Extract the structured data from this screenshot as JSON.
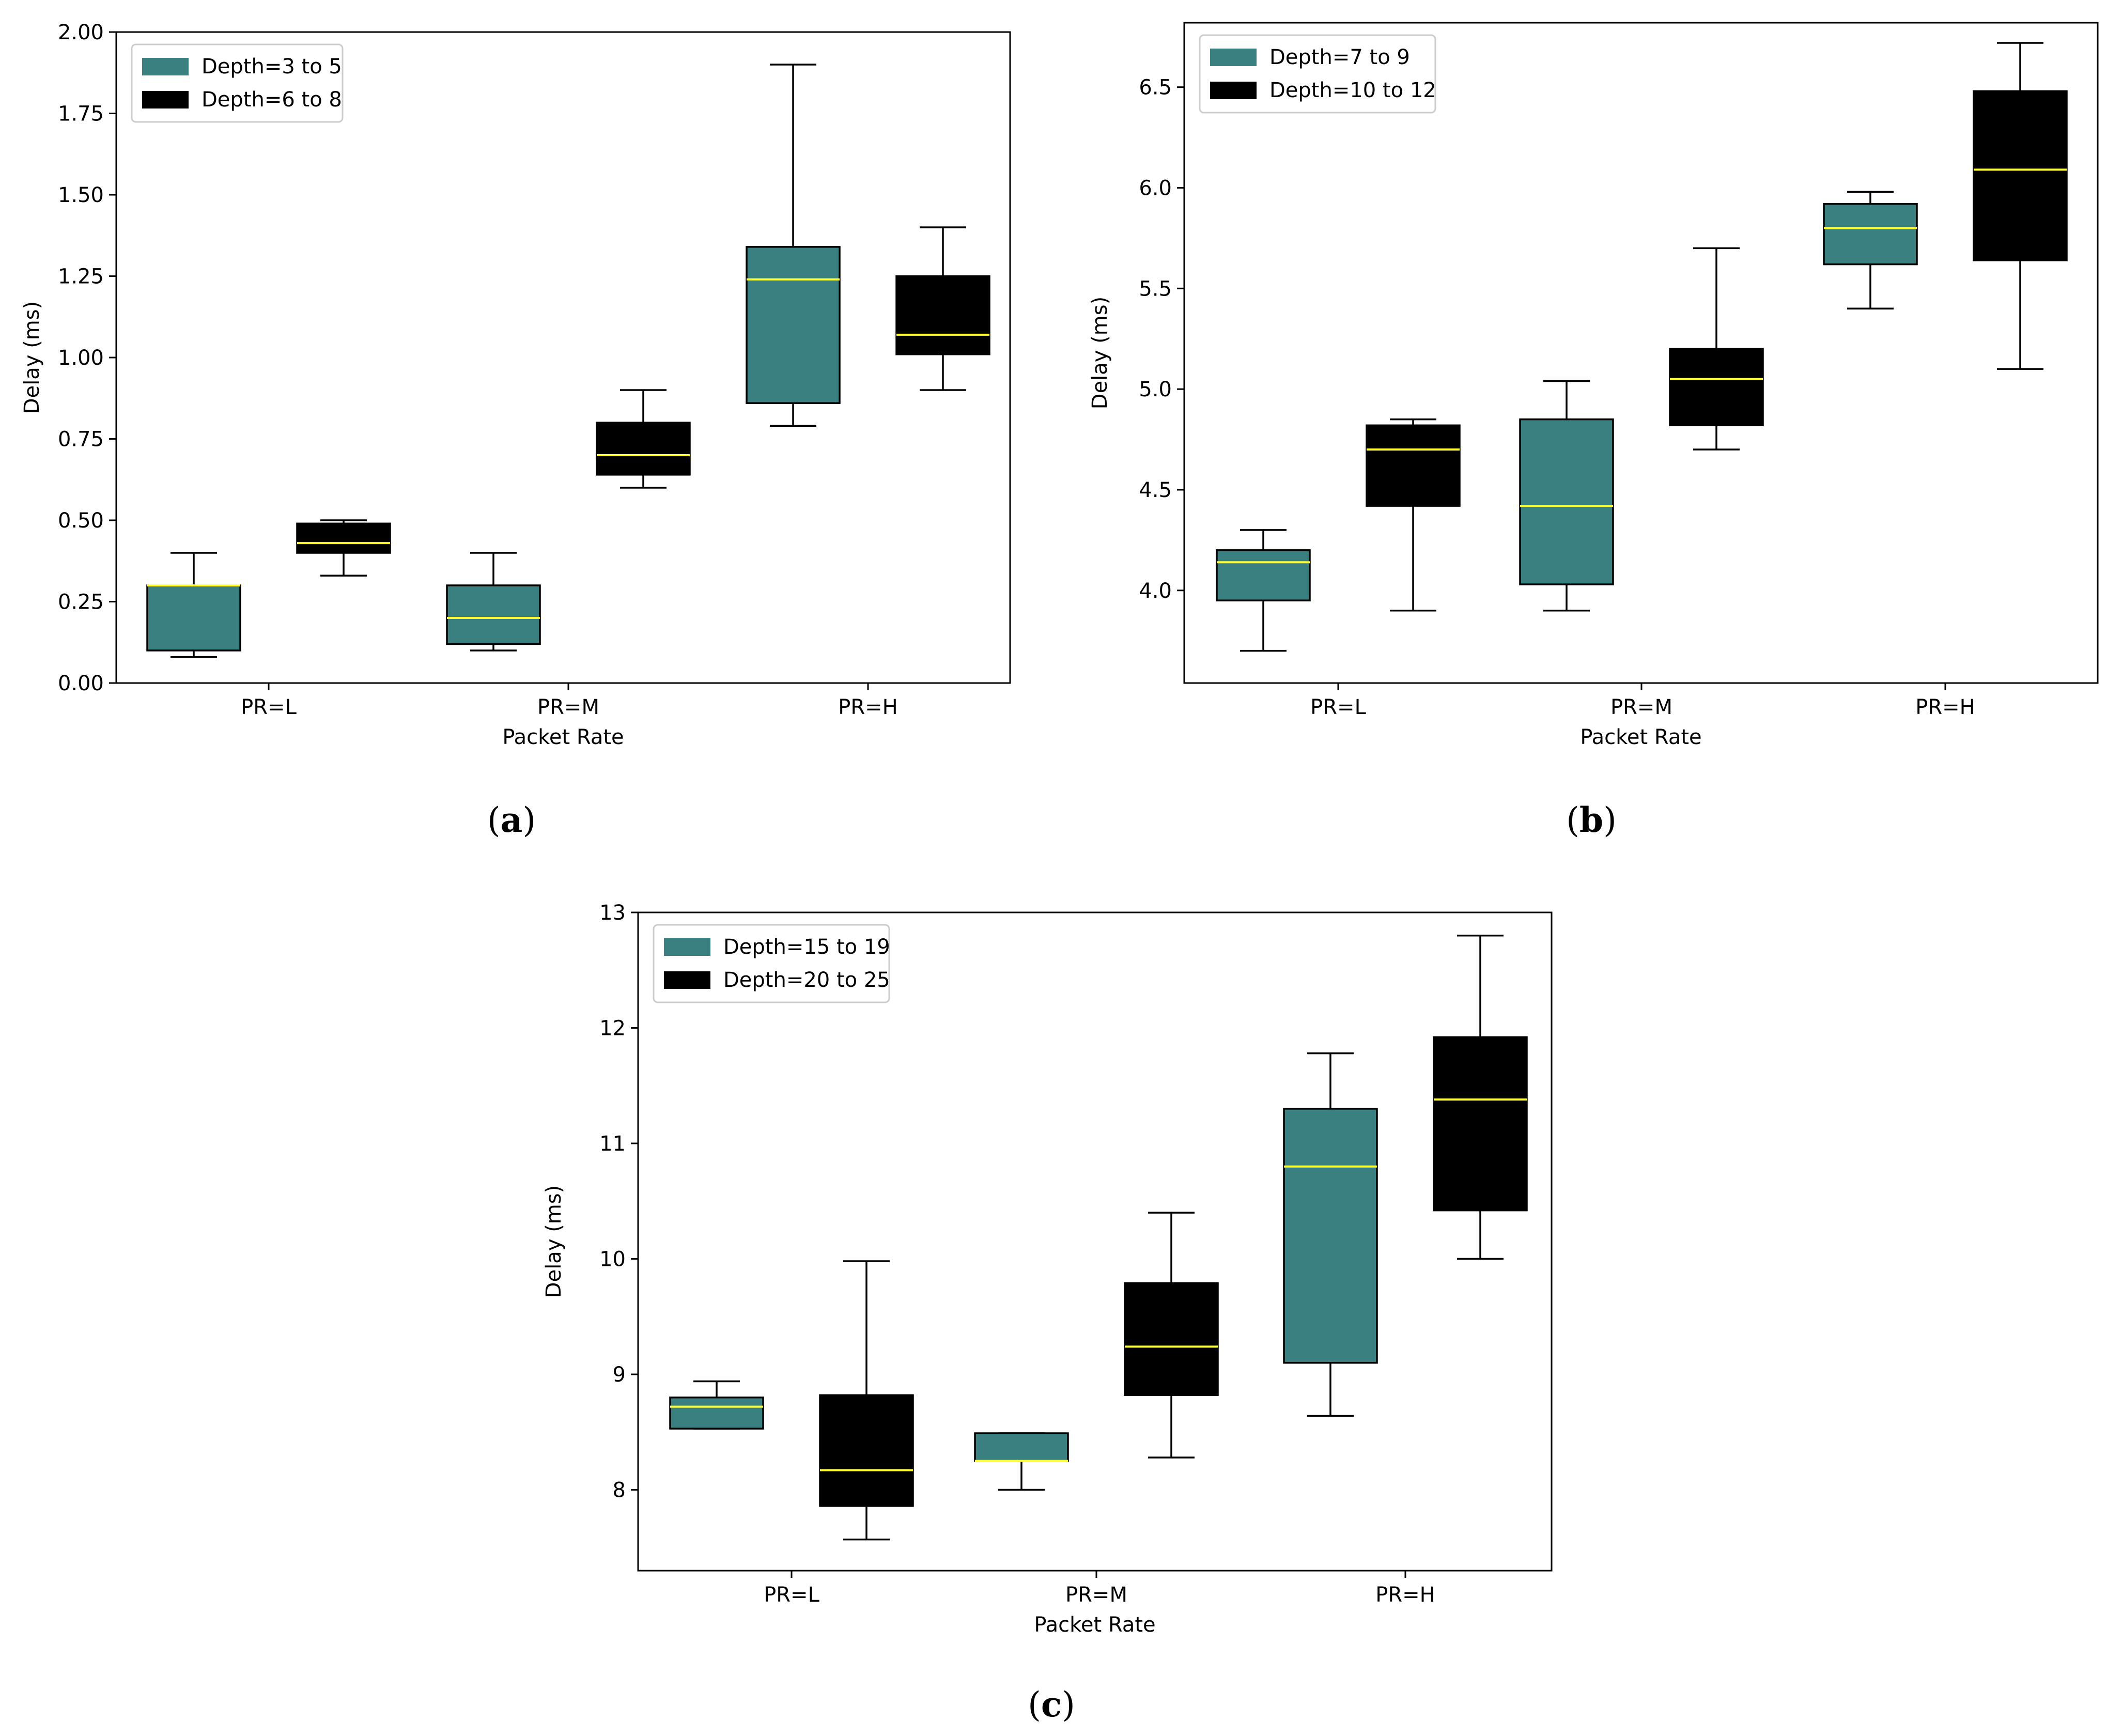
{
  "colors": {
    "teal": "#3a8080",
    "black": "#000000",
    "median": "#ffff33",
    "axis": "#000000"
  },
  "chart_data": [
    {
      "type": "box",
      "caption_letter": "a",
      "xlabel": "Packet Rate",
      "ylabel": "Delay (ms)",
      "categories": [
        "PR=L",
        "PR=M",
        "PR=H"
      ],
      "ylim": [
        0,
        2.0
      ],
      "yticks": [
        "0.00",
        "0.25",
        "0.50",
        "0.75",
        "1.00",
        "1.25",
        "1.50",
        "1.75",
        "2.00"
      ],
      "ytick_values": [
        0,
        0.25,
        0.5,
        0.75,
        1.0,
        1.25,
        1.5,
        1.75,
        2.0
      ],
      "legend_position": "top-left",
      "series": [
        {
          "name": "Depth=3 to 5",
          "color": "#3a8080",
          "boxes": [
            {
              "whislo": 0.08,
              "q1": 0.1,
              "med": 0.3,
              "q3": 0.3,
              "whishi": 0.4
            },
            {
              "whislo": 0.1,
              "q1": 0.12,
              "med": 0.2,
              "q3": 0.3,
              "whishi": 0.4
            },
            {
              "whislo": 0.79,
              "q1": 0.86,
              "med": 1.24,
              "q3": 1.34,
              "whishi": 1.9
            }
          ]
        },
        {
          "name": "Depth=6 to 8",
          "color": "#000000",
          "boxes": [
            {
              "whislo": 0.33,
              "q1": 0.4,
              "med": 0.43,
              "q3": 0.49,
              "whishi": 0.5
            },
            {
              "whislo": 0.6,
              "q1": 0.64,
              "med": 0.7,
              "q3": 0.8,
              "whishi": 0.9
            },
            {
              "whislo": 0.9,
              "q1": 1.01,
              "med": 1.07,
              "q3": 1.25,
              "whishi": 1.4
            }
          ]
        }
      ]
    },
    {
      "type": "box",
      "caption_letter": "b",
      "xlabel": "Packet Rate",
      "ylabel": "Delay (ms)",
      "categories": [
        "PR=L",
        "PR=M",
        "PR=H"
      ],
      "ylim": [
        3.54,
        6.82
      ],
      "yticks": [
        "4.0",
        "4.5",
        "5.0",
        "5.5",
        "6.0",
        "6.5"
      ],
      "ytick_values": [
        4.0,
        4.5,
        5.0,
        5.5,
        6.0,
        6.5
      ],
      "legend_position": "top-left",
      "series": [
        {
          "name": "Depth=7 to 9",
          "color": "#3a8080",
          "boxes": [
            {
              "whislo": 3.7,
              "q1": 3.95,
              "med": 4.14,
              "q3": 4.2,
              "whishi": 4.3
            },
            {
              "whislo": 3.9,
              "q1": 4.03,
              "med": 4.42,
              "q3": 4.85,
              "whishi": 5.04
            },
            {
              "whislo": 5.4,
              "q1": 5.62,
              "med": 5.8,
              "q3": 5.92,
              "whishi": 5.98
            }
          ]
        },
        {
          "name": "Depth=10 to 12",
          "color": "#000000",
          "boxes": [
            {
              "whislo": 3.9,
              "q1": 4.42,
              "med": 4.7,
              "q3": 4.82,
              "whishi": 4.85
            },
            {
              "whislo": 4.7,
              "q1": 4.82,
              "med": 5.05,
              "q3": 5.2,
              "whishi": 5.7
            },
            {
              "whislo": 5.1,
              "q1": 5.64,
              "med": 6.09,
              "q3": 6.48,
              "whishi": 6.72
            }
          ]
        }
      ]
    },
    {
      "type": "box",
      "caption_letter": "c",
      "xlabel": "Packet Rate",
      "ylabel": "Delay (ms)",
      "categories": [
        "PR=L",
        "PR=M",
        "PR=H"
      ],
      "ylim": [
        7.3,
        13.0
      ],
      "yticks": [
        "8",
        "9",
        "10",
        "11",
        "12",
        "13"
      ],
      "ytick_values": [
        8,
        9,
        10,
        11,
        12,
        13
      ],
      "legend_position": "top-left",
      "series": [
        {
          "name": "Depth=15 to 19",
          "color": "#3a8080",
          "boxes": [
            {
              "whislo": 8.53,
              "q1": 8.53,
              "med": 8.72,
              "q3": 8.8,
              "whishi": 8.94
            },
            {
              "whislo": 8.0,
              "q1": 8.25,
              "med": 8.25,
              "q3": 8.49,
              "whishi": 8.49
            },
            {
              "whislo": 8.64,
              "q1": 9.1,
              "med": 10.8,
              "q3": 11.3,
              "whishi": 11.78
            }
          ]
        },
        {
          "name": "Depth=20 to 25",
          "color": "#000000",
          "boxes": [
            {
              "whislo": 7.57,
              "q1": 7.86,
              "med": 8.17,
              "q3": 8.82,
              "whishi": 9.98
            },
            {
              "whislo": 8.28,
              "q1": 8.82,
              "med": 9.24,
              "q3": 9.79,
              "whishi": 10.4
            },
            {
              "whislo": 10.0,
              "q1": 10.42,
              "med": 11.38,
              "q3": 11.92,
              "whishi": 12.8
            }
          ]
        }
      ]
    }
  ]
}
